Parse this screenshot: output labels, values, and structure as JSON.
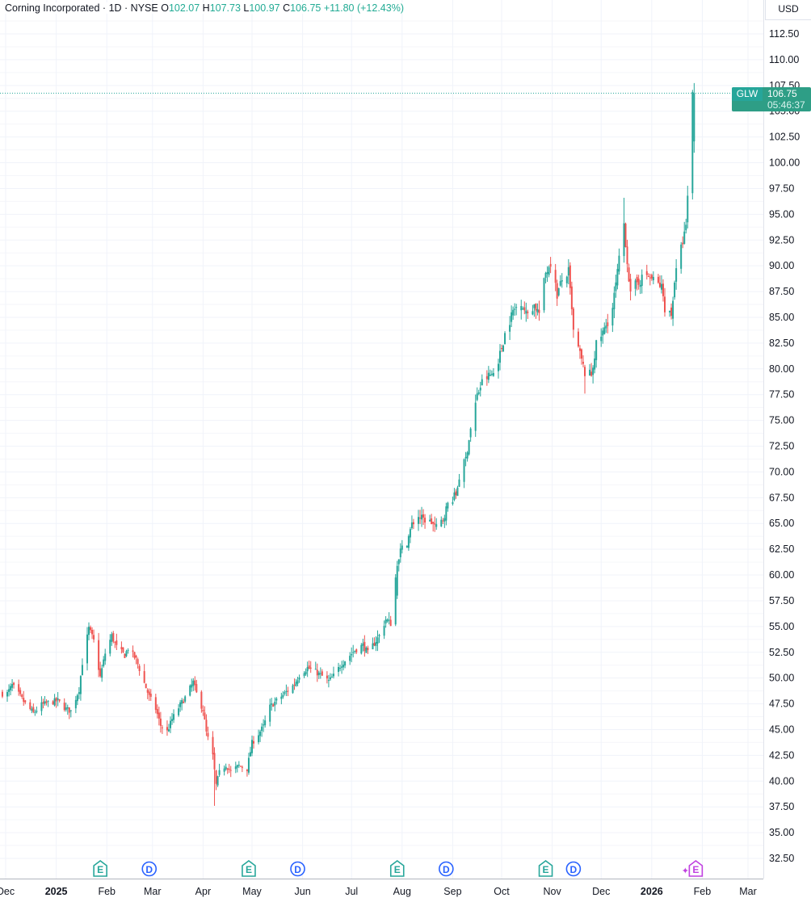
{
  "header": {
    "name": "Corning Incorporated",
    "interval": "1D",
    "exchange": "NYSE",
    "open_label": "O",
    "open": "102.07",
    "high_label": "H",
    "high": "107.73",
    "low_label": "L",
    "low": "100.97",
    "close_label": "C",
    "close": "106.75",
    "change": "+11.80",
    "change_pct": "(+12.43%)"
  },
  "currency": "USD",
  "last_price_tag": {
    "symbol": "GLW",
    "price": "106.75",
    "countdown": "05:46:37"
  },
  "colors": {
    "up": "#26a69a",
    "down": "#ef5350",
    "earnings": "#26a69a",
    "dividend": "#2962ff",
    "upcoming_earnings": "#c041e0"
  },
  "events": [
    {
      "type": "earnings",
      "label": "E",
      "date": "2025-01-28"
    },
    {
      "type": "dividend",
      "label": "D",
      "date": "2025-02-27"
    },
    {
      "type": "earnings",
      "label": "E",
      "date": "2025-04-29"
    },
    {
      "type": "dividend",
      "label": "D",
      "date": "2025-05-29"
    },
    {
      "type": "earnings",
      "label": "E",
      "date": "2025-07-29"
    },
    {
      "type": "dividend",
      "label": "D",
      "date": "2025-08-28"
    },
    {
      "type": "earnings",
      "label": "E",
      "date": "2025-10-28"
    },
    {
      "type": "dividend",
      "label": "D",
      "date": "2025-11-14"
    },
    {
      "type": "upcoming_earnings",
      "label": "E",
      "date": "2026-01-28"
    }
  ],
  "chart_data": {
    "type": "candlestick",
    "title": "Corning Incorporated · 1D · NYSE",
    "ylim": [
      30,
      116
    ],
    "y_ticks": [
      "32.50",
      "35.00",
      "37.50",
      "40.00",
      "42.50",
      "45.00",
      "47.50",
      "50.00",
      "52.50",
      "55.00",
      "57.50",
      "60.00",
      "62.50",
      "65.00",
      "67.50",
      "70.00",
      "72.50",
      "75.00",
      "77.50",
      "80.00",
      "82.50",
      "85.00",
      "87.50",
      "90.00",
      "92.50",
      "95.00",
      "97.50",
      "100.00",
      "102.50",
      "105.00",
      "107.50",
      "110.00",
      "112.50"
    ],
    "x_ticks": [
      "Dec",
      "2025",
      "Feb",
      "Mar",
      "Apr",
      "May",
      "Jun",
      "Jul",
      "Aug",
      "Sep",
      "Oct",
      "Nov",
      "Dec",
      "2026",
      "Feb",
      "Mar"
    ],
    "x_tick_dates": [
      "2024-12-01",
      "2025-01-01",
      "2025-02-01",
      "2025-03-01",
      "2025-04-01",
      "2025-05-01",
      "2025-06-01",
      "2025-07-01",
      "2025-08-01",
      "2025-09-01",
      "2025-10-01",
      "2025-11-01",
      "2025-12-01",
      "2026-01-01",
      "2026-02-01",
      "2026-03-01"
    ],
    "x_range": [
      "2024-11-30",
      "2026-03-05"
    ],
    "grid": true,
    "close_series": [
      {
        "date": "2024-12-02",
        "close": 48.5
      },
      {
        "date": "2024-12-05",
        "close": 49.3
      },
      {
        "date": "2024-12-10",
        "close": 48.2
      },
      {
        "date": "2024-12-13",
        "close": 47.5
      },
      {
        "date": "2024-12-18",
        "close": 46.6
      },
      {
        "date": "2024-12-23",
        "close": 47.4
      },
      {
        "date": "2024-12-27",
        "close": 47.6
      },
      {
        "date": "2025-01-02",
        "close": 47.8
      },
      {
        "date": "2025-01-07",
        "close": 47.0
      },
      {
        "date": "2025-01-10",
        "close": 46.8
      },
      {
        "date": "2025-01-15",
        "close": 48.9
      },
      {
        "date": "2025-01-17",
        "close": 51.5
      },
      {
        "date": "2025-01-21",
        "close": 54.8
      },
      {
        "date": "2025-01-24",
        "close": 53.6
      },
      {
        "date": "2025-01-28",
        "close": 50.1
      },
      {
        "date": "2025-01-31",
        "close": 52.4
      },
      {
        "date": "2025-02-04",
        "close": 54.1
      },
      {
        "date": "2025-02-07",
        "close": 53.0
      },
      {
        "date": "2025-02-12",
        "close": 52.2
      },
      {
        "date": "2025-02-14",
        "close": 52.9
      },
      {
        "date": "2025-02-19",
        "close": 51.8
      },
      {
        "date": "2025-02-24",
        "close": 49.5
      },
      {
        "date": "2025-02-27",
        "close": 48.2
      },
      {
        "date": "2025-03-03",
        "close": 47.0
      },
      {
        "date": "2025-03-06",
        "close": 45.4
      },
      {
        "date": "2025-03-10",
        "close": 44.8
      },
      {
        "date": "2025-03-13",
        "close": 46.0
      },
      {
        "date": "2025-03-18",
        "close": 47.4
      },
      {
        "date": "2025-03-21",
        "close": 48.1
      },
      {
        "date": "2025-03-26",
        "close": 49.6
      },
      {
        "date": "2025-03-28",
        "close": 48.5
      },
      {
        "date": "2025-04-01",
        "close": 46.9
      },
      {
        "date": "2025-04-03",
        "close": 44.7
      },
      {
        "date": "2025-04-07",
        "close": 42.4
      },
      {
        "date": "2025-04-09",
        "close": 39.6
      },
      {
        "date": "2025-04-11",
        "close": 40.8
      },
      {
        "date": "2025-04-15",
        "close": 41.6
      },
      {
        "date": "2025-04-18",
        "close": 40.9
      },
      {
        "date": "2025-04-23",
        "close": 41.5
      },
      {
        "date": "2025-04-28",
        "close": 41.2
      },
      {
        "date": "2025-05-01",
        "close": 43.7
      },
      {
        "date": "2025-05-05",
        "close": 44.6
      },
      {
        "date": "2025-05-08",
        "close": 45.3
      },
      {
        "date": "2025-05-12",
        "close": 47.2
      },
      {
        "date": "2025-05-16",
        "close": 47.8
      },
      {
        "date": "2025-05-21",
        "close": 48.5
      },
      {
        "date": "2025-05-27",
        "close": 49.4
      },
      {
        "date": "2025-05-30",
        "close": 50.3
      },
      {
        "date": "2025-06-04",
        "close": 51.0
      },
      {
        "date": "2025-06-09",
        "close": 50.6
      },
      {
        "date": "2025-06-12",
        "close": 50.3
      },
      {
        "date": "2025-06-17",
        "close": 49.7
      },
      {
        "date": "2025-06-20",
        "close": 50.2
      },
      {
        "date": "2025-06-25",
        "close": 51.4
      },
      {
        "date": "2025-06-30",
        "close": 52.2
      },
      {
        "date": "2025-07-03",
        "close": 52.7
      },
      {
        "date": "2025-07-08",
        "close": 53.2
      },
      {
        "date": "2025-07-11",
        "close": 52.4
      },
      {
        "date": "2025-07-15",
        "close": 53.4
      },
      {
        "date": "2025-07-18",
        "close": 54.1
      },
      {
        "date": "2025-07-22",
        "close": 55.7
      },
      {
        "date": "2025-07-25",
        "close": 55.3
      },
      {
        "date": "2025-07-29",
        "close": 61.2
      },
      {
        "date": "2025-07-31",
        "close": 62.4
      },
      {
        "date": "2025-08-04",
        "close": 63.2
      },
      {
        "date": "2025-08-07",
        "close": 64.9
      },
      {
        "date": "2025-08-11",
        "close": 65.7
      },
      {
        "date": "2025-08-14",
        "close": 65.4
      },
      {
        "date": "2025-08-19",
        "close": 65.1
      },
      {
        "date": "2025-08-22",
        "close": 64.6
      },
      {
        "date": "2025-08-26",
        "close": 65.4
      },
      {
        "date": "2025-08-29",
        "close": 66.9
      },
      {
        "date": "2025-09-03",
        "close": 67.8
      },
      {
        "date": "2025-09-05",
        "close": 69.5
      },
      {
        "date": "2025-09-09",
        "close": 71.3
      },
      {
        "date": "2025-09-12",
        "close": 74.2
      },
      {
        "date": "2025-09-16",
        "close": 77.4
      },
      {
        "date": "2025-09-19",
        "close": 78.7
      },
      {
        "date": "2025-09-23",
        "close": 79.3
      },
      {
        "date": "2025-09-26",
        "close": 79.6
      },
      {
        "date": "2025-09-30",
        "close": 81.4
      },
      {
        "date": "2025-10-03",
        "close": 83.4
      },
      {
        "date": "2025-10-08",
        "close": 85.6
      },
      {
        "date": "2025-10-13",
        "close": 86.6
      },
      {
        "date": "2025-10-16",
        "close": 85.3
      },
      {
        "date": "2025-10-21",
        "close": 86.2
      },
      {
        "date": "2025-10-24",
        "close": 85.4
      },
      {
        "date": "2025-10-28",
        "close": 89.3
      },
      {
        "date": "2025-10-31",
        "close": 90.4
      },
      {
        "date": "2025-11-04",
        "close": 87.2
      },
      {
        "date": "2025-11-07",
        "close": 88.6
      },
      {
        "date": "2025-11-11",
        "close": 89.4
      },
      {
        "date": "2025-11-14",
        "close": 83.6
      },
      {
        "date": "2025-11-18",
        "close": 81.4
      },
      {
        "date": "2025-11-21",
        "close": 79.6
      },
      {
        "date": "2025-11-25",
        "close": 79.4
      },
      {
        "date": "2025-11-28",
        "close": 82.3
      },
      {
        "date": "2025-12-03",
        "close": 83.8
      },
      {
        "date": "2025-12-08",
        "close": 85.9
      },
      {
        "date": "2025-12-11",
        "close": 89.3
      },
      {
        "date": "2025-12-15",
        "close": 94.1
      },
      {
        "date": "2025-12-17",
        "close": 90.5
      },
      {
        "date": "2025-12-19",
        "close": 87.1
      },
      {
        "date": "2025-12-23",
        "close": 88.4
      },
      {
        "date": "2025-12-29",
        "close": 89.1
      },
      {
        "date": "2026-01-02",
        "close": 88.6
      },
      {
        "date": "2026-01-07",
        "close": 87.9
      },
      {
        "date": "2026-01-09",
        "close": 86.0
      },
      {
        "date": "2026-01-13",
        "close": 85.2
      },
      {
        "date": "2026-01-15",
        "close": 88.6
      },
      {
        "date": "2026-01-20",
        "close": 92.4
      },
      {
        "date": "2026-01-22",
        "close": 93.6
      },
      {
        "date": "2026-01-26",
        "close": 106.75
      }
    ],
    "last_candle": {
      "date": "2026-01-27",
      "open": 102.07,
      "high": 107.73,
      "low": 100.97,
      "close": 106.75
    },
    "series": [
      {
        "values_are": "daily close, estimated from chart",
        "key": "close_series"
      }
    ]
  }
}
